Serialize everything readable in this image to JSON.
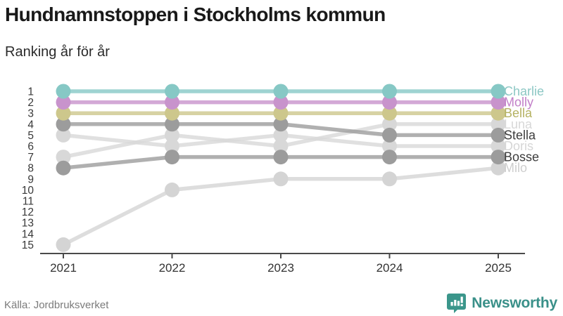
{
  "header": {
    "title": "Hundnamnstoppen i Stockholms kommun",
    "subtitle": "Ranking år för år"
  },
  "chart_data": {
    "type": "line",
    "variant": "bump-ranking-chart",
    "title": "Hundnamnstoppen i Stockholms kommun",
    "subtitle": "Ranking år för år",
    "x": [
      2021,
      2022,
      2023,
      2024,
      2025
    ],
    "x_tick_labels": [
      "2021",
      "2022",
      "2023",
      "2024",
      "2025"
    ],
    "y_tick_labels": [
      "1",
      "2",
      "3",
      "4",
      "5",
      "6",
      "7",
      "8",
      "9",
      "10",
      "11",
      "12",
      "13",
      "14",
      "15"
    ],
    "y_axis_inverted": true,
    "ylim": [
      1,
      15
    ],
    "grid": false,
    "legend_position": "right-of-last-point",
    "series": [
      {
        "name": "Charlie",
        "color": "#86c8c5",
        "label_color": "#8cc7c4",
        "values": [
          1,
          1,
          1,
          1,
          1
        ]
      },
      {
        "name": "Molly",
        "color": "#c893cc",
        "label_color": "#c27fc8",
        "values": [
          2,
          2,
          2,
          2,
          2
        ]
      },
      {
        "name": "Bella",
        "color": "#cdc78c",
        "label_color": "#b5b262",
        "values": [
          3,
          3,
          3,
          3,
          3
        ]
      },
      {
        "name": "Luna",
        "color": "#d8d8d8",
        "label_color": "#d8d8d8",
        "values": [
          7,
          5,
          6,
          4,
          4
        ]
      },
      {
        "name": "Stella",
        "color": "#9c9c9c",
        "label_color": "#3d3d3d",
        "values": [
          4,
          4,
          4,
          5,
          5
        ]
      },
      {
        "name": "Doris",
        "color": "#d8d8d8",
        "label_color": "#d6d6d6",
        "values": [
          5,
          6,
          5,
          6,
          6
        ]
      },
      {
        "name": "Bosse",
        "color": "#9c9c9c",
        "label_color": "#3d3d3d",
        "values": [
          8,
          7,
          7,
          7,
          7
        ]
      },
      {
        "name": "Milo",
        "color": "#d4d4d4",
        "label_color": "#cecece",
        "values": [
          15,
          10,
          9,
          9,
          8
        ]
      }
    ],
    "axis_color": "#4a4a4a",
    "tick_label_color": "#383838"
  },
  "footer": {
    "source": "Källa: Jordbruksverket",
    "brand": "Newsworthy",
    "brand_color": "#3a9089",
    "logo_icon": "bar-chart-speech-bubble-icon",
    "logo_icon_color": "#3b968b"
  }
}
